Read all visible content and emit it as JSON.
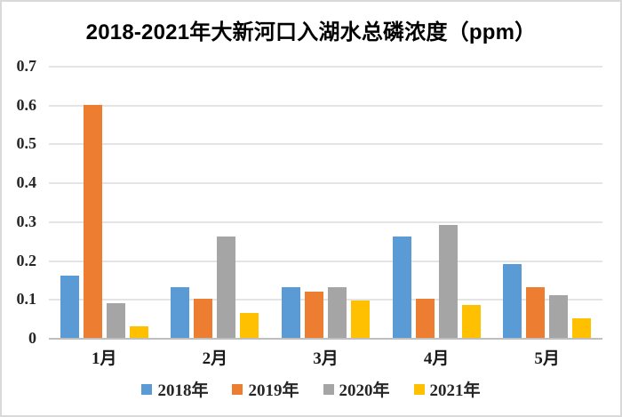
{
  "chart_data": {
    "type": "bar",
    "title": "2018-2021年大新河口入湖水总磷浓度（ppm）",
    "categories": [
      "1月",
      "2月",
      "3月",
      "4月",
      "5月"
    ],
    "series": [
      {
        "name": "2018年",
        "color": "#5B9BD5",
        "values": [
          0.16,
          0.13,
          0.13,
          0.26,
          0.19
        ]
      },
      {
        "name": "2019年",
        "color": "#ED7D31",
        "values": [
          0.6,
          0.1,
          0.12,
          0.1,
          0.13
        ]
      },
      {
        "name": "2020年",
        "color": "#A5A5A5",
        "values": [
          0.09,
          0.26,
          0.13,
          0.29,
          0.11
        ]
      },
      {
        "name": "2021年",
        "color": "#FFC000",
        "values": [
          0.03,
          0.065,
          0.095,
          0.085,
          0.05
        ]
      }
    ],
    "xlabel": "",
    "ylabel": "",
    "ylim": [
      0,
      0.7
    ],
    "yticks": [
      0,
      0.1,
      0.2,
      0.3,
      0.4,
      0.5,
      0.6,
      0.7
    ],
    "ytick_labels": [
      "0",
      "0.1",
      "0.2",
      "0.3",
      "0.4",
      "0.5",
      "0.6",
      "0.7"
    ],
    "grid": true,
    "legend_position": "bottom",
    "axis_color": "#bfbfbf",
    "gridline_color": "#e4e4e4",
    "background_color": "#ffffff",
    "border_color": "#d9d9d9"
  }
}
